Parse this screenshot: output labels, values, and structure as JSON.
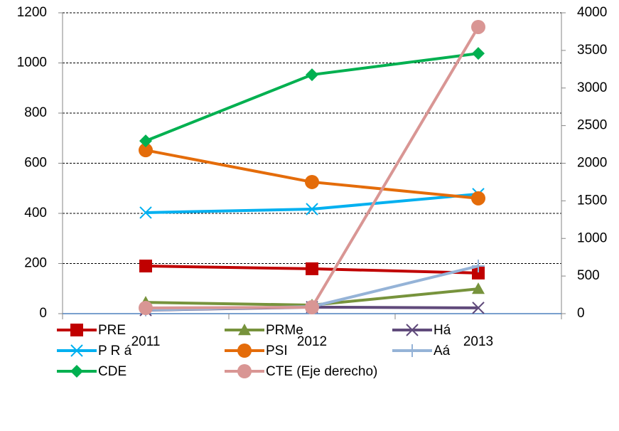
{
  "chart_data": {
    "type": "line",
    "categories": [
      "2011",
      "2012",
      "2013"
    ],
    "series": [
      {
        "name": "PRE",
        "color": "#c00000",
        "marker": "square",
        "values": [
          190,
          179,
          162
        ]
      },
      {
        "name": "PRMe",
        "color": "#77933c",
        "marker": "triangle",
        "values": [
          45,
          34,
          99
        ]
      },
      {
        "name": "Há",
        "color": "#604a7b",
        "marker": "x",
        "values": [
          14,
          26,
          23
        ]
      },
      {
        "name": "P R á",
        "color": "#00b0f0",
        "marker": "x",
        "values": [
          403,
          417,
          477
        ]
      },
      {
        "name": "PSI",
        "color": "#e46c0a",
        "marker": "circle",
        "values": [
          652,
          525,
          460
        ]
      },
      {
        "name": "Aá",
        "color": "#95b3d7",
        "marker": "plus",
        "values": [
          15,
          28,
          190
        ]
      },
      {
        "name": "CDE",
        "color": "#00b050",
        "marker": "diamond",
        "values": [
          689,
          953,
          1038
        ]
      },
      {
        "name": "CTE (Eje derecho)",
        "color": "#d99694",
        "marker": "circle",
        "axis": "y2",
        "values": [
          76,
          85,
          3811
        ]
      }
    ],
    "ylim": [
      0,
      1200
    ],
    "yticks": [
      0,
      200,
      400,
      600,
      800,
      1000,
      1200
    ],
    "y2lim": [
      0,
      4000
    ],
    "y2ticks": [
      0,
      500,
      1000,
      1500,
      2000,
      2500,
      3000,
      3500,
      4000
    ],
    "grid": true,
    "legend": "bottom"
  }
}
